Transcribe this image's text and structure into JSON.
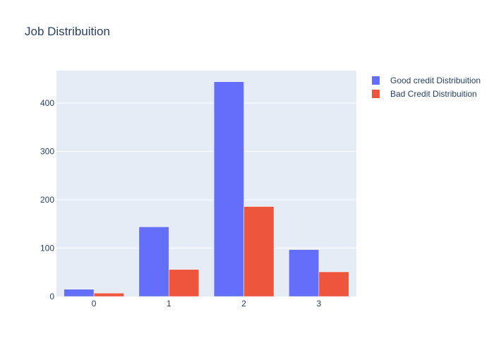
{
  "chart_data": {
    "type": "bar",
    "title": "Job Distribuition",
    "xlabel": "",
    "ylabel": "",
    "categories": [
      "0",
      "1",
      "2",
      "3"
    ],
    "series": [
      {
        "name": "Good credit Distribuition",
        "values": [
          15,
          144,
          444,
          97
        ],
        "color": "#636efa"
      },
      {
        "name": "Bad Credit Distribuition",
        "values": [
          7,
          56,
          186,
          51
        ],
        "color": "#ef553b"
      }
    ],
    "ylim": [
      0,
      467
    ],
    "yticks": [
      0,
      100,
      200,
      300,
      400
    ],
    "grid": true,
    "legend_position": "top-right",
    "plot_background": "#e5ecf6"
  }
}
